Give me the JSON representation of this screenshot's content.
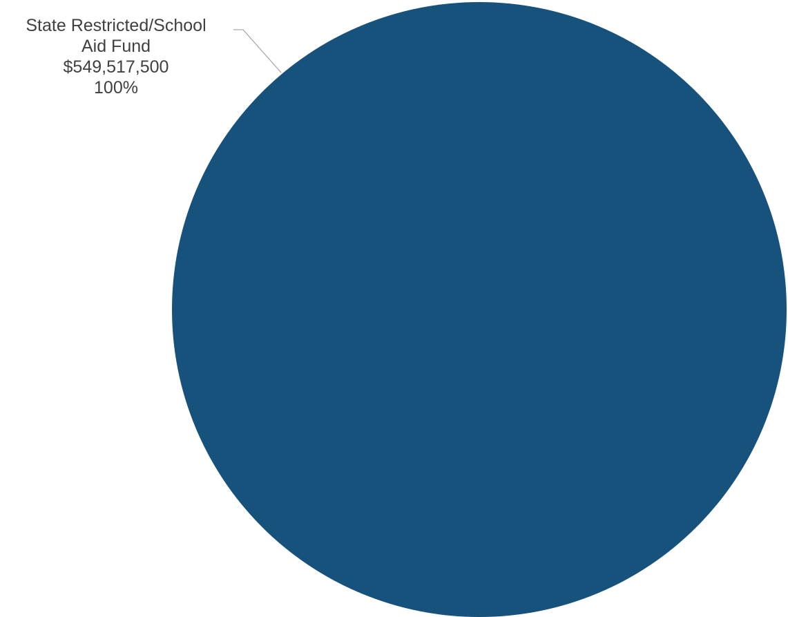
{
  "chart_data": {
    "type": "pie",
    "title": "",
    "slices": [
      {
        "label_lines": [
          "State Restricted/School",
          "Aid Fund"
        ],
        "value": 549517500,
        "value_label": "$549,517,500",
        "percent": 100,
        "percent_label": "100%",
        "color": "#17527d"
      }
    ],
    "legend": "none"
  }
}
